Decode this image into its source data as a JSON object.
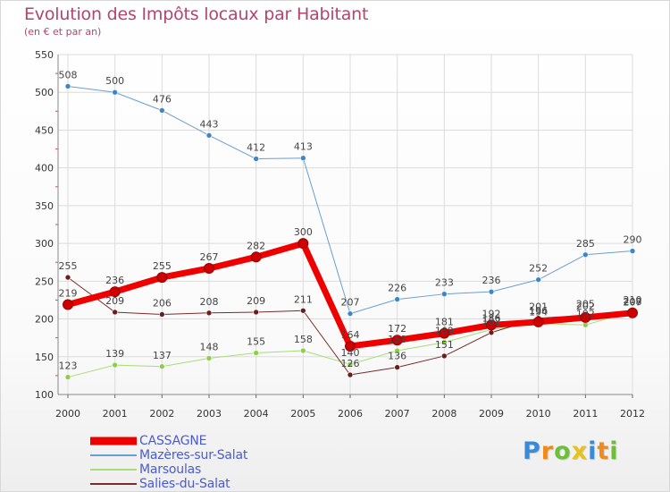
{
  "header": {
    "title": "Evolution des Impôts locaux par Habitant",
    "subtitle": "(en € et par an)"
  },
  "colors": {
    "title": "#b2456e",
    "legend_text": "#4a5bd0",
    "grid": "#dcdcdc"
  },
  "logo": {
    "text": "Proxiti",
    "letters": [
      {
        "ch": "P",
        "color": "#3a8ad6"
      },
      {
        "ch": "r",
        "color": "#f08a1a"
      },
      {
        "ch": "o",
        "color": "#6dbf3a"
      },
      {
        "ch": "x",
        "color": "#e6c21a"
      },
      {
        "ch": "i",
        "color": "#3a8ad6"
      },
      {
        "ch": "t",
        "color": "#f08a1a"
      },
      {
        "ch": "i",
        "color": "#6dbf3a"
      }
    ]
  },
  "chart_data": {
    "type": "line",
    "title": "Evolution des Impôts locaux par Habitant",
    "subtitle": "(en € et par an)",
    "xlabel": "",
    "ylabel": "",
    "x": [
      "2000",
      "2001",
      "2002",
      "2003",
      "2004",
      "2005",
      "2006",
      "2007",
      "2008",
      "2009",
      "2010",
      "2011",
      "2012"
    ],
    "ylim": [
      100,
      550
    ],
    "yticks": [
      100,
      150,
      200,
      250,
      300,
      350,
      400,
      450,
      500,
      550
    ],
    "grid": true,
    "legend_position": "bottom-left",
    "series": [
      {
        "name": "CASSAGNE",
        "color": "#ee0000",
        "marker": "#cc0000",
        "width": 7,
        "values": [
          219,
          236,
          255,
          267,
          282,
          300,
          164,
          172,
          181,
          192,
          196,
          202,
          208
        ],
        "labels": [
          "219",
          "236",
          "255",
          "267",
          "282",
          "300",
          "164",
          "172",
          "181",
          "192",
          "196",
          "202",
          "208"
        ]
      },
      {
        "name": "Mazères-sur-Salat",
        "color": "#6a9fd0",
        "marker": "#3d86c8",
        "width": 1,
        "values": [
          508,
          500,
          476,
          443,
          412,
          413,
          207,
          226,
          233,
          236,
          252,
          285,
          290
        ],
        "labels": [
          "508",
          "500",
          "476",
          "443",
          "412",
          "413",
          "207",
          "226",
          "233",
          "236",
          "252",
          "285",
          "290"
        ]
      },
      {
        "name": "Marsoulas",
        "color": "#a6dd77",
        "marker": "#8cd046",
        "width": 1,
        "values": [
          123,
          139,
          137,
          148,
          155,
          158,
          140,
          158,
          169,
          186,
          194,
          192,
          210
        ],
        "labels": [
          "123",
          "139",
          "137",
          "148",
          "155",
          "158",
          "140",
          "158",
          "169",
          "186",
          "194",
          "192",
          "210"
        ]
      },
      {
        "name": "Salies-du-Salat",
        "color": "#7a2b2b",
        "marker": "#6a1e1e",
        "width": 1,
        "values": [
          255,
          209,
          206,
          208,
          209,
          211,
          126,
          136,
          151,
          182,
          201,
          205,
          207
        ],
        "labels": [
          "255",
          "209",
          "206",
          "208",
          "209",
          "211",
          "126",
          "136",
          "151",
          "182",
          "201",
          "205",
          "207"
        ]
      }
    ]
  }
}
